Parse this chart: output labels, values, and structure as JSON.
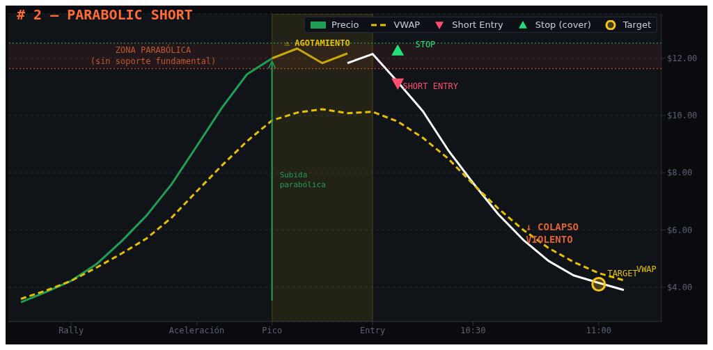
{
  "chart_data": {
    "type": "line",
    "title": "# 2 — PARABOLIC SHORT",
    "categories": [
      null,
      null,
      "Rally",
      null,
      null,
      null,
      null,
      "Aceleración",
      null,
      null,
      "Pico",
      null,
      null,
      null,
      "Entry",
      null,
      null,
      null,
      "10:30",
      null,
      null,
      null,
      null,
      "11:00",
      null
    ],
    "ylim": [
      2.8,
      13.55
    ],
    "yticks": [
      {
        "value": 4,
        "label": "$4.00"
      },
      {
        "value": 6,
        "label": "$6.00"
      },
      {
        "value": 8,
        "label": "$8.00"
      },
      {
        "value": 10,
        "label": "$10.00"
      },
      {
        "value": 12,
        "label": "$12.00"
      }
    ],
    "grid": "y",
    "legend": "top right",
    "series": [
      {
        "name": "Precio",
        "color": "#1f9e55",
        "values": [
          3.47,
          3.83,
          4.22,
          4.8,
          5.6,
          6.5,
          7.6,
          8.93,
          10.27,
          11.44,
          12.0,
          null,
          null,
          null,
          null,
          null,
          null,
          null,
          null,
          null,
          null,
          null,
          null,
          null,
          null
        ]
      },
      {
        "color": "#c9a80a",
        "values": [
          null,
          null,
          null,
          null,
          null,
          null,
          null,
          null,
          null,
          null,
          12.0,
          12.34,
          11.83,
          12.17,
          null,
          null,
          null,
          null,
          null,
          null,
          null,
          null,
          null,
          null,
          null
        ]
      },
      {
        "color": "#ffffff",
        "values": [
          null,
          null,
          null,
          null,
          null,
          null,
          null,
          null,
          null,
          null,
          null,
          null,
          null,
          11.83,
          12.15,
          11.17,
          10.15,
          8.8,
          7.64,
          6.55,
          5.65,
          4.92,
          4.41,
          4.15,
          3.9
        ]
      },
      {
        "name": "VWAP",
        "color": "#e6c000",
        "line_style": "dashed",
        "values": [
          3.59,
          3.88,
          4.22,
          4.68,
          5.17,
          5.7,
          6.43,
          7.35,
          8.25,
          9.1,
          9.83,
          10.1,
          10.22,
          10.08,
          10.13,
          9.79,
          9.22,
          8.5,
          7.6,
          6.75,
          6.0,
          5.37,
          4.88,
          4.49,
          4.24
        ]
      },
      {
        "name": "Short Entry",
        "type": "scatter",
        "color": "#ff4d6d",
        "marker": "triangle_down",
        "values": [
          null,
          null,
          null,
          null,
          null,
          null,
          null,
          null,
          null,
          null,
          null,
          null,
          null,
          null,
          null,
          11.12,
          null,
          null,
          null,
          null,
          null,
          null,
          null,
          null,
          null
        ]
      },
      {
        "name": "Stop (cover)",
        "type": "scatter",
        "color": "#22e07a",
        "marker": "triangle",
        "values": [
          null,
          null,
          null,
          null,
          null,
          null,
          null,
          null,
          null,
          null,
          null,
          null,
          null,
          null,
          null,
          12.27,
          null,
          null,
          null,
          null,
          null,
          null,
          null,
          null,
          null
        ]
      },
      {
        "name": "Target",
        "type": "scatter",
        "color": "#f5c518",
        "marker": "circle",
        "values": [
          null,
          null,
          null,
          null,
          null,
          null,
          null,
          null,
          null,
          null,
          null,
          null,
          null,
          null,
          null,
          null,
          null,
          null,
          null,
          null,
          null,
          null,
          null,
          4.1,
          null
        ]
      }
    ],
    "bands": [
      {
        "axis": "x",
        "from": "Pico",
        "to": "Entry",
        "color": "#c9a80a"
      },
      {
        "axis": "y",
        "from": 11.64,
        "to": 12.53,
        "color": "#a33a2a",
        "label": "ZONA PARABÓLICA\n(sin soporte fundamental)"
      }
    ],
    "ref_lines": [
      {
        "axis": "y",
        "value": 12.53,
        "color": "#1f9e55",
        "line_style": "dotted"
      },
      {
        "axis": "y",
        "value": 11.64,
        "color": "#c0502a",
        "line_style": "dotted"
      }
    ],
    "annotations": [
      "⚠ AGOTAMIENTO",
      "STOP",
      "SHORT ENTRY",
      "↓ COLAPSO\nVIOLENTO",
      "TARGET",
      "VWAP",
      "Subida\nparabólica"
    ]
  }
}
